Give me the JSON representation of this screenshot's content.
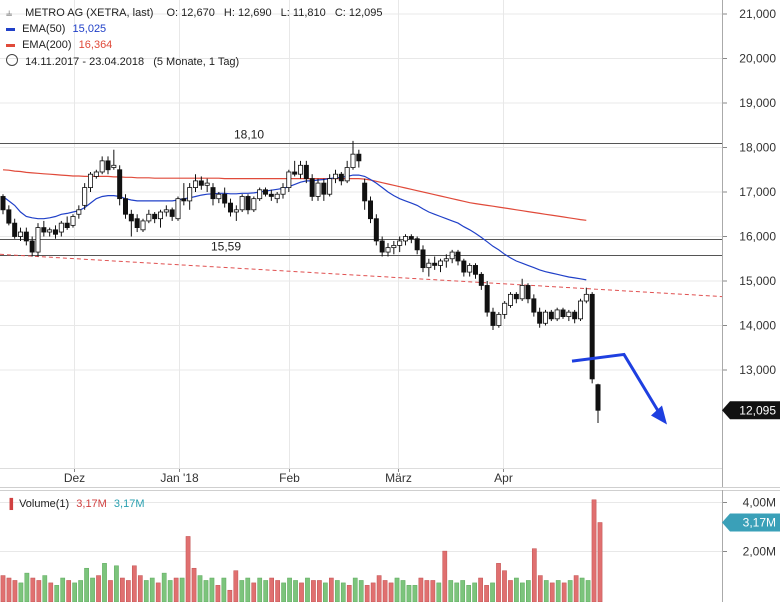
{
  "header": {
    "instrument": "METRO AG (XETRA, last)",
    "ohlc": {
      "o_label": "O:",
      "o": "12,670",
      "h_label": "H:",
      "h": "12,690",
      "l_label": "L:",
      "l": "11,810",
      "c_label": "C:",
      "c": "12,095"
    },
    "ema50": {
      "label": "EMA(50)",
      "value": "15,025",
      "color": "#2040c8"
    },
    "ema200": {
      "label": "EMA(200)",
      "value": "16,364",
      "color": "#e04a3a"
    },
    "range": {
      "dates": "14.11.2017 - 23.04.2018",
      "period": "(5 Monate, 1 Tag)"
    }
  },
  "volume_legend": {
    "label": "Volume(1)",
    "v1": "3,17M",
    "v2": "3,17M"
  },
  "colors": {
    "up": "#7cc47c",
    "down": "#e07070",
    "down_edge": "#c05050",
    "grid": "#e8e8e8",
    "axis_text": "#333333",
    "trend_arrow": "#1e3fe0",
    "last_badge": "#3aa0b8"
  },
  "chart_data": [
    {
      "type": "candlestick",
      "title": "METRO AG (XETRA, last)",
      "x_axis": {
        "tick_labels": [
          "Dez",
          "Jan '18",
          "Feb",
          "März",
          "Apr"
        ]
      },
      "y_axis": {
        "position": "right",
        "range": [
          11.2,
          21.2
        ],
        "tick_labels": [
          "21,000",
          "20,000",
          "19,000",
          "18,000",
          "17,000",
          "16,000",
          "15,000",
          "14,000",
          "13,000"
        ]
      },
      "last_price": "12,095",
      "candles": [
        {
          "o": 16.9,
          "h": 16.95,
          "l": 16.5,
          "c": 16.6
        },
        {
          "o": 16.6,
          "h": 16.7,
          "l": 16.25,
          "c": 16.3
        },
        {
          "o": 16.3,
          "h": 16.4,
          "l": 15.95,
          "c": 16.0
        },
        {
          "o": 16.0,
          "h": 16.2,
          "l": 15.9,
          "c": 16.1
        },
        {
          "o": 16.1,
          "h": 16.2,
          "l": 15.8,
          "c": 15.9
        },
        {
          "o": 15.9,
          "h": 16.0,
          "l": 15.55,
          "c": 15.65
        },
        {
          "o": 15.65,
          "h": 16.3,
          "l": 15.55,
          "c": 16.2
        },
        {
          "o": 16.2,
          "h": 16.35,
          "l": 16.0,
          "c": 16.1
        },
        {
          "o": 16.1,
          "h": 16.2,
          "l": 16.0,
          "c": 16.15
        },
        {
          "o": 16.15,
          "h": 16.25,
          "l": 15.95,
          "c": 16.05
        },
        {
          "o": 16.1,
          "h": 16.35,
          "l": 16.0,
          "c": 16.3
        },
        {
          "o": 16.3,
          "h": 16.45,
          "l": 16.15,
          "c": 16.2
        },
        {
          "o": 16.25,
          "h": 16.5,
          "l": 16.2,
          "c": 16.45
        },
        {
          "o": 16.5,
          "h": 16.7,
          "l": 16.4,
          "c": 16.6
        },
        {
          "o": 16.7,
          "h": 17.2,
          "l": 16.6,
          "c": 17.1
        },
        {
          "o": 17.1,
          "h": 17.45,
          "l": 17.0,
          "c": 17.4
        },
        {
          "o": 17.35,
          "h": 17.5,
          "l": 17.3,
          "c": 17.45
        },
        {
          "o": 17.45,
          "h": 17.8,
          "l": 17.4,
          "c": 17.7
        },
        {
          "o": 17.7,
          "h": 17.8,
          "l": 17.4,
          "c": 17.5
        },
        {
          "o": 17.55,
          "h": 17.95,
          "l": 17.5,
          "c": 17.6
        },
        {
          "o": 17.5,
          "h": 17.6,
          "l": 16.7,
          "c": 16.85
        },
        {
          "o": 16.85,
          "h": 16.95,
          "l": 16.4,
          "c": 16.5
        },
        {
          "o": 16.5,
          "h": 16.6,
          "l": 16.0,
          "c": 16.35
        },
        {
          "o": 16.4,
          "h": 16.5,
          "l": 16.1,
          "c": 16.2
        },
        {
          "o": 16.15,
          "h": 16.4,
          "l": 16.1,
          "c": 16.35
        },
        {
          "o": 16.35,
          "h": 16.6,
          "l": 16.3,
          "c": 16.5
        },
        {
          "o": 16.5,
          "h": 16.55,
          "l": 16.3,
          "c": 16.4
        },
        {
          "o": 16.4,
          "h": 16.6,
          "l": 16.2,
          "c": 16.55
        },
        {
          "o": 16.55,
          "h": 16.7,
          "l": 16.45,
          "c": 16.6
        },
        {
          "o": 16.6,
          "h": 16.65,
          "l": 16.35,
          "c": 16.45
        },
        {
          "o": 16.4,
          "h": 16.9,
          "l": 16.35,
          "c": 16.85
        },
        {
          "o": 16.85,
          "h": 17.2,
          "l": 16.7,
          "c": 16.8
        },
        {
          "o": 16.8,
          "h": 17.2,
          "l": 16.6,
          "c": 17.1
        },
        {
          "o": 17.1,
          "h": 17.4,
          "l": 17.0,
          "c": 17.25
        },
        {
          "o": 17.25,
          "h": 17.35,
          "l": 17.05,
          "c": 17.15
        },
        {
          "o": 17.15,
          "h": 17.3,
          "l": 17.0,
          "c": 17.2
        },
        {
          "o": 17.1,
          "h": 17.2,
          "l": 16.7,
          "c": 16.85
        },
        {
          "o": 16.85,
          "h": 17.0,
          "l": 16.75,
          "c": 16.95
        },
        {
          "o": 16.95,
          "h": 17.1,
          "l": 16.65,
          "c": 16.75
        },
        {
          "o": 16.75,
          "h": 16.85,
          "l": 16.45,
          "c": 16.55
        },
        {
          "o": 16.55,
          "h": 16.7,
          "l": 16.35,
          "c": 16.6
        },
        {
          "o": 16.6,
          "h": 16.95,
          "l": 16.55,
          "c": 16.9
        },
        {
          "o": 16.9,
          "h": 16.95,
          "l": 16.5,
          "c": 16.6
        },
        {
          "o": 16.6,
          "h": 16.9,
          "l": 16.55,
          "c": 16.85
        },
        {
          "o": 16.85,
          "h": 17.1,
          "l": 16.8,
          "c": 17.05
        },
        {
          "o": 17.05,
          "h": 17.1,
          "l": 16.9,
          "c": 16.95
        },
        {
          "o": 16.95,
          "h": 17.05,
          "l": 16.8,
          "c": 16.9
        },
        {
          "o": 16.85,
          "h": 17.0,
          "l": 16.75,
          "c": 16.95
        },
        {
          "o": 16.95,
          "h": 17.2,
          "l": 16.85,
          "c": 17.1
        },
        {
          "o": 17.1,
          "h": 17.5,
          "l": 17.0,
          "c": 17.45
        },
        {
          "o": 17.45,
          "h": 17.7,
          "l": 17.35,
          "c": 17.4
        },
        {
          "o": 17.4,
          "h": 17.7,
          "l": 17.3,
          "c": 17.6
        },
        {
          "o": 17.6,
          "h": 17.7,
          "l": 17.2,
          "c": 17.3
        },
        {
          "o": 17.3,
          "h": 17.4,
          "l": 16.8,
          "c": 16.9
        },
        {
          "o": 16.9,
          "h": 17.3,
          "l": 16.8,
          "c": 17.2
        },
        {
          "o": 17.2,
          "h": 17.3,
          "l": 16.8,
          "c": 16.95
        },
        {
          "o": 16.95,
          "h": 17.4,
          "l": 16.9,
          "c": 17.3
        },
        {
          "o": 17.3,
          "h": 17.5,
          "l": 17.2,
          "c": 17.4
        },
        {
          "o": 17.4,
          "h": 17.45,
          "l": 17.15,
          "c": 17.25
        },
        {
          "o": 17.25,
          "h": 17.7,
          "l": 17.2,
          "c": 17.55
        },
        {
          "o": 17.55,
          "h": 18.15,
          "l": 17.5,
          "c": 17.85
        },
        {
          "o": 17.85,
          "h": 17.95,
          "l": 17.55,
          "c": 17.7
        },
        {
          "o": 17.2,
          "h": 17.3,
          "l": 16.6,
          "c": 16.8
        },
        {
          "o": 16.8,
          "h": 16.9,
          "l": 16.3,
          "c": 16.4
        },
        {
          "o": 16.4,
          "h": 16.5,
          "l": 15.8,
          "c": 15.9
        },
        {
          "o": 15.9,
          "h": 16.0,
          "l": 15.55,
          "c": 15.65
        },
        {
          "o": 15.65,
          "h": 15.85,
          "l": 15.55,
          "c": 15.75
        },
        {
          "o": 15.75,
          "h": 15.9,
          "l": 15.6,
          "c": 15.8
        },
        {
          "o": 15.8,
          "h": 16.0,
          "l": 15.65,
          "c": 15.9
        },
        {
          "o": 15.9,
          "h": 16.05,
          "l": 15.8,
          "c": 16.0
        },
        {
          "o": 16.0,
          "h": 16.05,
          "l": 15.85,
          "c": 15.95
        },
        {
          "o": 15.95,
          "h": 16.0,
          "l": 15.6,
          "c": 15.7
        },
        {
          "o": 15.7,
          "h": 15.8,
          "l": 15.2,
          "c": 15.3
        },
        {
          "o": 15.3,
          "h": 15.5,
          "l": 15.1,
          "c": 15.4
        },
        {
          "o": 15.4,
          "h": 15.55,
          "l": 15.25,
          "c": 15.35
        },
        {
          "o": 15.35,
          "h": 15.5,
          "l": 15.2,
          "c": 15.45
        },
        {
          "o": 15.45,
          "h": 15.6,
          "l": 15.3,
          "c": 15.5
        },
        {
          "o": 15.5,
          "h": 15.7,
          "l": 15.4,
          "c": 15.65
        },
        {
          "o": 15.65,
          "h": 15.7,
          "l": 15.35,
          "c": 15.45
        },
        {
          "o": 15.45,
          "h": 15.5,
          "l": 15.1,
          "c": 15.2
        },
        {
          "o": 15.2,
          "h": 15.4,
          "l": 15.1,
          "c": 15.35
        },
        {
          "o": 15.35,
          "h": 15.4,
          "l": 15.05,
          "c": 15.15
        },
        {
          "o": 15.15,
          "h": 15.2,
          "l": 14.8,
          "c": 14.9
        },
        {
          "o": 14.9,
          "h": 15.0,
          "l": 14.2,
          "c": 14.3
        },
        {
          "o": 14.3,
          "h": 14.4,
          "l": 13.9,
          "c": 14.0
        },
        {
          "o": 14.0,
          "h": 14.3,
          "l": 13.95,
          "c": 14.25
        },
        {
          "o": 14.25,
          "h": 14.55,
          "l": 14.15,
          "c": 14.5
        },
        {
          "o": 14.45,
          "h": 14.75,
          "l": 14.4,
          "c": 14.7
        },
        {
          "o": 14.7,
          "h": 14.75,
          "l": 14.5,
          "c": 14.6
        },
        {
          "o": 14.6,
          "h": 15.05,
          "l": 14.55,
          "c": 14.9
        },
        {
          "o": 14.9,
          "h": 14.95,
          "l": 14.5,
          "c": 14.6
        },
        {
          "o": 14.6,
          "h": 14.7,
          "l": 14.2,
          "c": 14.3
        },
        {
          "o": 14.3,
          "h": 14.4,
          "l": 13.95,
          "c": 14.05
        },
        {
          "o": 14.05,
          "h": 14.35,
          "l": 14.0,
          "c": 14.3
        },
        {
          "o": 14.3,
          "h": 14.35,
          "l": 14.1,
          "c": 14.15
        },
        {
          "o": 14.15,
          "h": 14.4,
          "l": 14.1,
          "c": 14.35
        },
        {
          "o": 14.35,
          "h": 14.4,
          "l": 14.15,
          "c": 14.2
        },
        {
          "o": 14.2,
          "h": 14.35,
          "l": 14.1,
          "c": 14.3
        },
        {
          "o": 14.3,
          "h": 14.35,
          "l": 14.05,
          "c": 14.15
        },
        {
          "o": 14.15,
          "h": 14.6,
          "l": 14.1,
          "c": 14.55
        },
        {
          "o": 14.55,
          "h": 14.85,
          "l": 14.5,
          "c": 14.7
        },
        {
          "o": 14.7,
          "h": 14.75,
          "l": 12.7,
          "c": 12.8
        },
        {
          "o": 12.67,
          "h": 12.69,
          "l": 11.81,
          "c": 12.095
        }
      ],
      "ema50": [
        16.9,
        16.8,
        16.7,
        16.55,
        16.45,
        16.42,
        16.4,
        16.4,
        16.42,
        16.45,
        16.5,
        16.52,
        16.55,
        16.58,
        16.65,
        16.75,
        16.85,
        16.9,
        16.92,
        16.92,
        16.9,
        16.85,
        16.82,
        16.8,
        16.8,
        16.8,
        16.8,
        16.8,
        16.8,
        16.8,
        16.82,
        16.85,
        16.87,
        16.9,
        16.93,
        16.95,
        16.96,
        16.97,
        16.97,
        16.96,
        16.96,
        16.97,
        16.97,
        16.98,
        17.0,
        17.02,
        17.04,
        17.06,
        17.08,
        17.12,
        17.17,
        17.22,
        17.25,
        17.25,
        17.27,
        17.28,
        17.3,
        17.32,
        17.33,
        17.35,
        17.38,
        17.38,
        17.35,
        17.28,
        17.2,
        17.1,
        17.0,
        16.92,
        16.85,
        16.8,
        16.75,
        16.7,
        16.62,
        16.55,
        16.5,
        16.45,
        16.4,
        16.35,
        16.3,
        16.22,
        16.15,
        16.07,
        15.98,
        15.88,
        15.78,
        15.7,
        15.6,
        15.52,
        15.45,
        15.4,
        15.35,
        15.3,
        15.25,
        15.21,
        15.18,
        15.15,
        15.12,
        15.09,
        15.07,
        15.05,
        15.025
      ],
      "ema200": [
        17.5,
        17.49,
        17.47,
        17.46,
        17.44,
        17.43,
        17.42,
        17.41,
        17.4,
        17.39,
        17.38,
        17.37,
        17.36,
        17.36,
        17.35,
        17.35,
        17.35,
        17.35,
        17.35,
        17.34,
        17.34,
        17.33,
        17.33,
        17.32,
        17.32,
        17.32,
        17.31,
        17.31,
        17.31,
        17.31,
        17.31,
        17.31,
        17.31,
        17.31,
        17.31,
        17.31,
        17.31,
        17.31,
        17.3,
        17.3,
        17.3,
        17.3,
        17.3,
        17.3,
        17.3,
        17.3,
        17.3,
        17.3,
        17.3,
        17.3,
        17.3,
        17.3,
        17.3,
        17.3,
        17.3,
        17.3,
        17.3,
        17.3,
        17.3,
        17.3,
        17.3,
        17.3,
        17.29,
        17.27,
        17.24,
        17.21,
        17.18,
        17.15,
        17.12,
        17.09,
        17.06,
        17.03,
        17.0,
        16.97,
        16.94,
        16.91,
        16.88,
        16.85,
        16.82,
        16.79,
        16.76,
        16.74,
        16.72,
        16.7,
        16.68,
        16.66,
        16.64,
        16.62,
        16.6,
        16.58,
        16.56,
        16.54,
        16.52,
        16.5,
        16.48,
        16.46,
        16.44,
        16.42,
        16.4,
        16.38,
        16.364
      ],
      "horizontal_lines": [
        {
          "value": 18.1,
          "label": "18,10"
        },
        {
          "value": 15.95
        },
        {
          "value": 15.59,
          "label": "15,59"
        }
      ],
      "trend_line_from": 15.6,
      "trend_line_to": 14.65,
      "forecast_arrow": [
        13.2,
        13.35,
        11.82
      ]
    },
    {
      "type": "bar",
      "title": "Volume(1)",
      "y_axis": {
        "position": "right",
        "tick_labels": [
          "4,00M",
          "2,00M"
        ],
        "range": [
          0,
          4.5
        ]
      },
      "last_value": "3,17M",
      "values": [
        1.0,
        0.9,
        0.8,
        0.7,
        1.1,
        0.9,
        0.8,
        1.0,
        0.7,
        0.6,
        0.9,
        0.8,
        0.7,
        0.8,
        1.3,
        0.9,
        1.0,
        1.5,
        0.8,
        1.4,
        0.9,
        0.8,
        1.4,
        1.0,
        0.8,
        0.9,
        0.7,
        1.1,
        0.8,
        0.9,
        0.9,
        2.6,
        1.3,
        1.0,
        0.8,
        0.9,
        0.6,
        0.9,
        0.4,
        1.2,
        0.8,
        0.9,
        0.7,
        0.9,
        0.8,
        0.9,
        0.8,
        0.7,
        0.9,
        0.8,
        0.7,
        0.9,
        0.8,
        0.8,
        0.7,
        0.9,
        0.8,
        0.7,
        0.6,
        0.9,
        0.8,
        0.6,
        0.7,
        1.0,
        0.8,
        0.7,
        0.9,
        0.8,
        0.6,
        0.6,
        0.9,
        0.8,
        0.8,
        0.7,
        2.0,
        0.8,
        0.7,
        0.8,
        0.6,
        0.7,
        0.9,
        0.6,
        0.7,
        1.5,
        1.2,
        0.8,
        0.9,
        0.7,
        0.8,
        2.1,
        1.0,
        0.8,
        0.7,
        0.8,
        0.7,
        0.8,
        1.0,
        0.9,
        0.8,
        4.1,
        3.17
      ],
      "colors": [
        "d",
        "d",
        "d",
        "u",
        "u",
        "d",
        "d",
        "u",
        "d",
        "u",
        "u",
        "d",
        "u",
        "u",
        "u",
        "u",
        "d",
        "u",
        "d",
        "u",
        "d",
        "d",
        "d",
        "d",
        "u",
        "u",
        "d",
        "u",
        "u",
        "d",
        "u",
        "d",
        "d",
        "u",
        "u",
        "u",
        "d",
        "u",
        "d",
        "d",
        "u",
        "u",
        "d",
        "u",
        "u",
        "d",
        "d",
        "u",
        "u",
        "u",
        "d",
        "u",
        "d",
        "d",
        "u",
        "d",
        "u",
        "u",
        "d",
        "u",
        "u",
        "d",
        "d",
        "d",
        "d",
        "d",
        "u",
        "u",
        "u",
        "u",
        "d",
        "d",
        "d",
        "u",
        "d",
        "u",
        "u",
        "u",
        "u",
        "u",
        "d",
        "d",
        "u",
        "d",
        "d",
        "d",
        "u",
        "u",
        "u",
        "d",
        "d",
        "u",
        "d",
        "u",
        "d",
        "u",
        "d",
        "u",
        "u",
        "d",
        "d"
      ]
    }
  ]
}
